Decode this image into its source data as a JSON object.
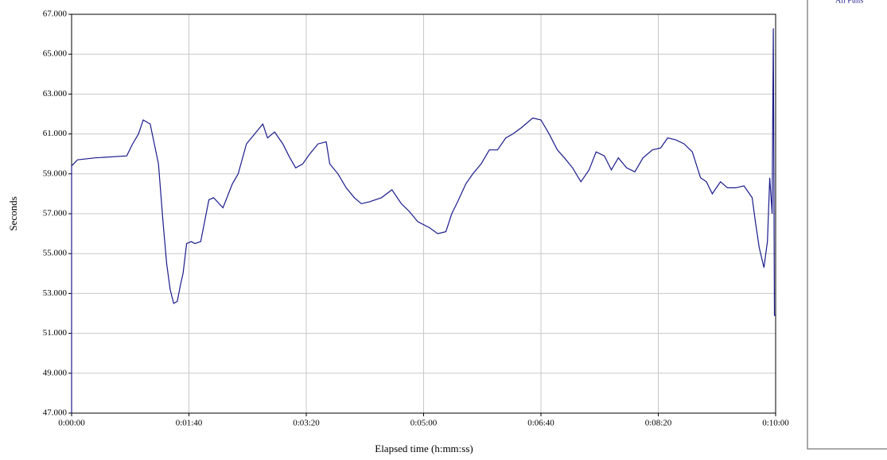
{
  "chart_data": {
    "type": "line",
    "x_label": "Elapsed time (h:mm:ss)",
    "y_label": "Seconds",
    "x": [
      0,
      0,
      5,
      20,
      47,
      52,
      57,
      61,
      67,
      74,
      78,
      81,
      84,
      87,
      90,
      93,
      95,
      98,
      102,
      105,
      110,
      117,
      121,
      129,
      137,
      142,
      149,
      156,
      163,
      167,
      173,
      180,
      186,
      191,
      197,
      203,
      210,
      217,
      220,
      227,
      234,
      241,
      247,
      254,
      264,
      273,
      281,
      288,
      295,
      305,
      312,
      319,
      324,
      329,
      336,
      342,
      349,
      356,
      363,
      370,
      376,
      383,
      393,
      400,
      407,
      414,
      420,
      427,
      434,
      441,
      447,
      454,
      460,
      466,
      473,
      480,
      487,
      495,
      502,
      508,
      515,
      522,
      529,
      536,
      541,
      546,
      553,
      559,
      566,
      573,
      580,
      583,
      586,
      590,
      593,
      595,
      597,
      598,
      599,
      600
    ],
    "series": [
      {
        "name": "All Pulls",
        "color": "#1a1a8c",
        "values": [
          47,
          59.4,
          59.7,
          59.8,
          59.9,
          60.5,
          61,
          61.7,
          61.5,
          59.5,
          56.5,
          54.5,
          53.2,
          52.5,
          52.6,
          53.5,
          54,
          55.5,
          55.6,
          55.5,
          55.6,
          57.7,
          57.8,
          57.3,
          58.5,
          59,
          60.5,
          61,
          61.5,
          60.8,
          61.1,
          60.5,
          59.8,
          59.3,
          59.5,
          60,
          60.5,
          60.6,
          59.5,
          59,
          58.3,
          57.8,
          57.5,
          57.6,
          57.8,
          58.2,
          57.5,
          57.1,
          56.6,
          56.3,
          56,
          56.1,
          57,
          57.6,
          58.5,
          59,
          59.5,
          60.2,
          60.2,
          60.8,
          61,
          61.3,
          61.8,
          61.7,
          61,
          60.2,
          59.8,
          59.3,
          58.6,
          59.2,
          60.1,
          59.9,
          59.2,
          59.8,
          59.3,
          59.1,
          59.8,
          60.2,
          60.3,
          60.8,
          60.7,
          60.5,
          60.1,
          58.8,
          58.6,
          58,
          58.6,
          58.3,
          58.3,
          58.4,
          57.8,
          56.5,
          55.3,
          54.3,
          55.6,
          58.8,
          57,
          66.3,
          51.9,
          51.9
        ]
      }
    ],
    "xlim": [
      0,
      600
    ],
    "xticks": [
      {
        "value": 0,
        "label": "0:00:00"
      },
      {
        "value": 100,
        "label": "0:01:40"
      },
      {
        "value": 200,
        "label": "0:03:20"
      },
      {
        "value": 300,
        "label": "0:05:00"
      },
      {
        "value": 400,
        "label": "0:06:40"
      },
      {
        "value": 500,
        "label": "0:08:20"
      },
      {
        "value": 600,
        "label": "0:10:00"
      }
    ],
    "ylim": [
      47,
      67
    ],
    "yticks": [
      {
        "value": 47,
        "label": "47.000"
      },
      {
        "value": 49,
        "label": "49.000"
      },
      {
        "value": 51,
        "label": "51.000"
      },
      {
        "value": 53,
        "label": "53.000"
      },
      {
        "value": 55,
        "label": "55.000"
      },
      {
        "value": 57,
        "label": "57.000"
      },
      {
        "value": 59,
        "label": "59.000"
      },
      {
        "value": 61,
        "label": "61.000"
      },
      {
        "value": 63,
        "label": "63.000"
      },
      {
        "value": 65,
        "label": "65.000"
      },
      {
        "value": 67,
        "label": "67.000"
      }
    ],
    "grid": true,
    "legend": "right"
  }
}
